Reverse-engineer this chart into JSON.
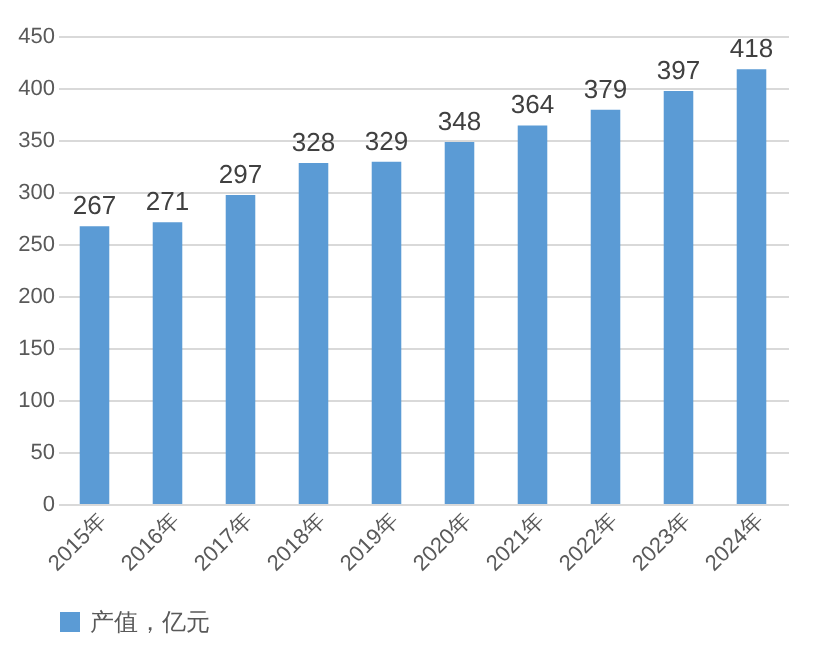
{
  "chart_data": {
    "type": "bar",
    "categories": [
      "2015年",
      "2016年",
      "2017年",
      "2018年",
      "2019年",
      "2020年",
      "2021年",
      "2022年",
      "2023年",
      "2024年"
    ],
    "series": [
      {
        "name": "产值，亿元",
        "color": "#5b9bd5",
        "values": [
          267,
          271,
          297,
          328,
          329,
          348,
          364,
          379,
          397,
          418
        ]
      }
    ],
    "ylim": [
      0,
      450
    ],
    "yticks": [
      0,
      50,
      100,
      150,
      200,
      250,
      300,
      350,
      400,
      450
    ],
    "grid": "y",
    "legend": "bottom",
    "data_labels": true
  }
}
